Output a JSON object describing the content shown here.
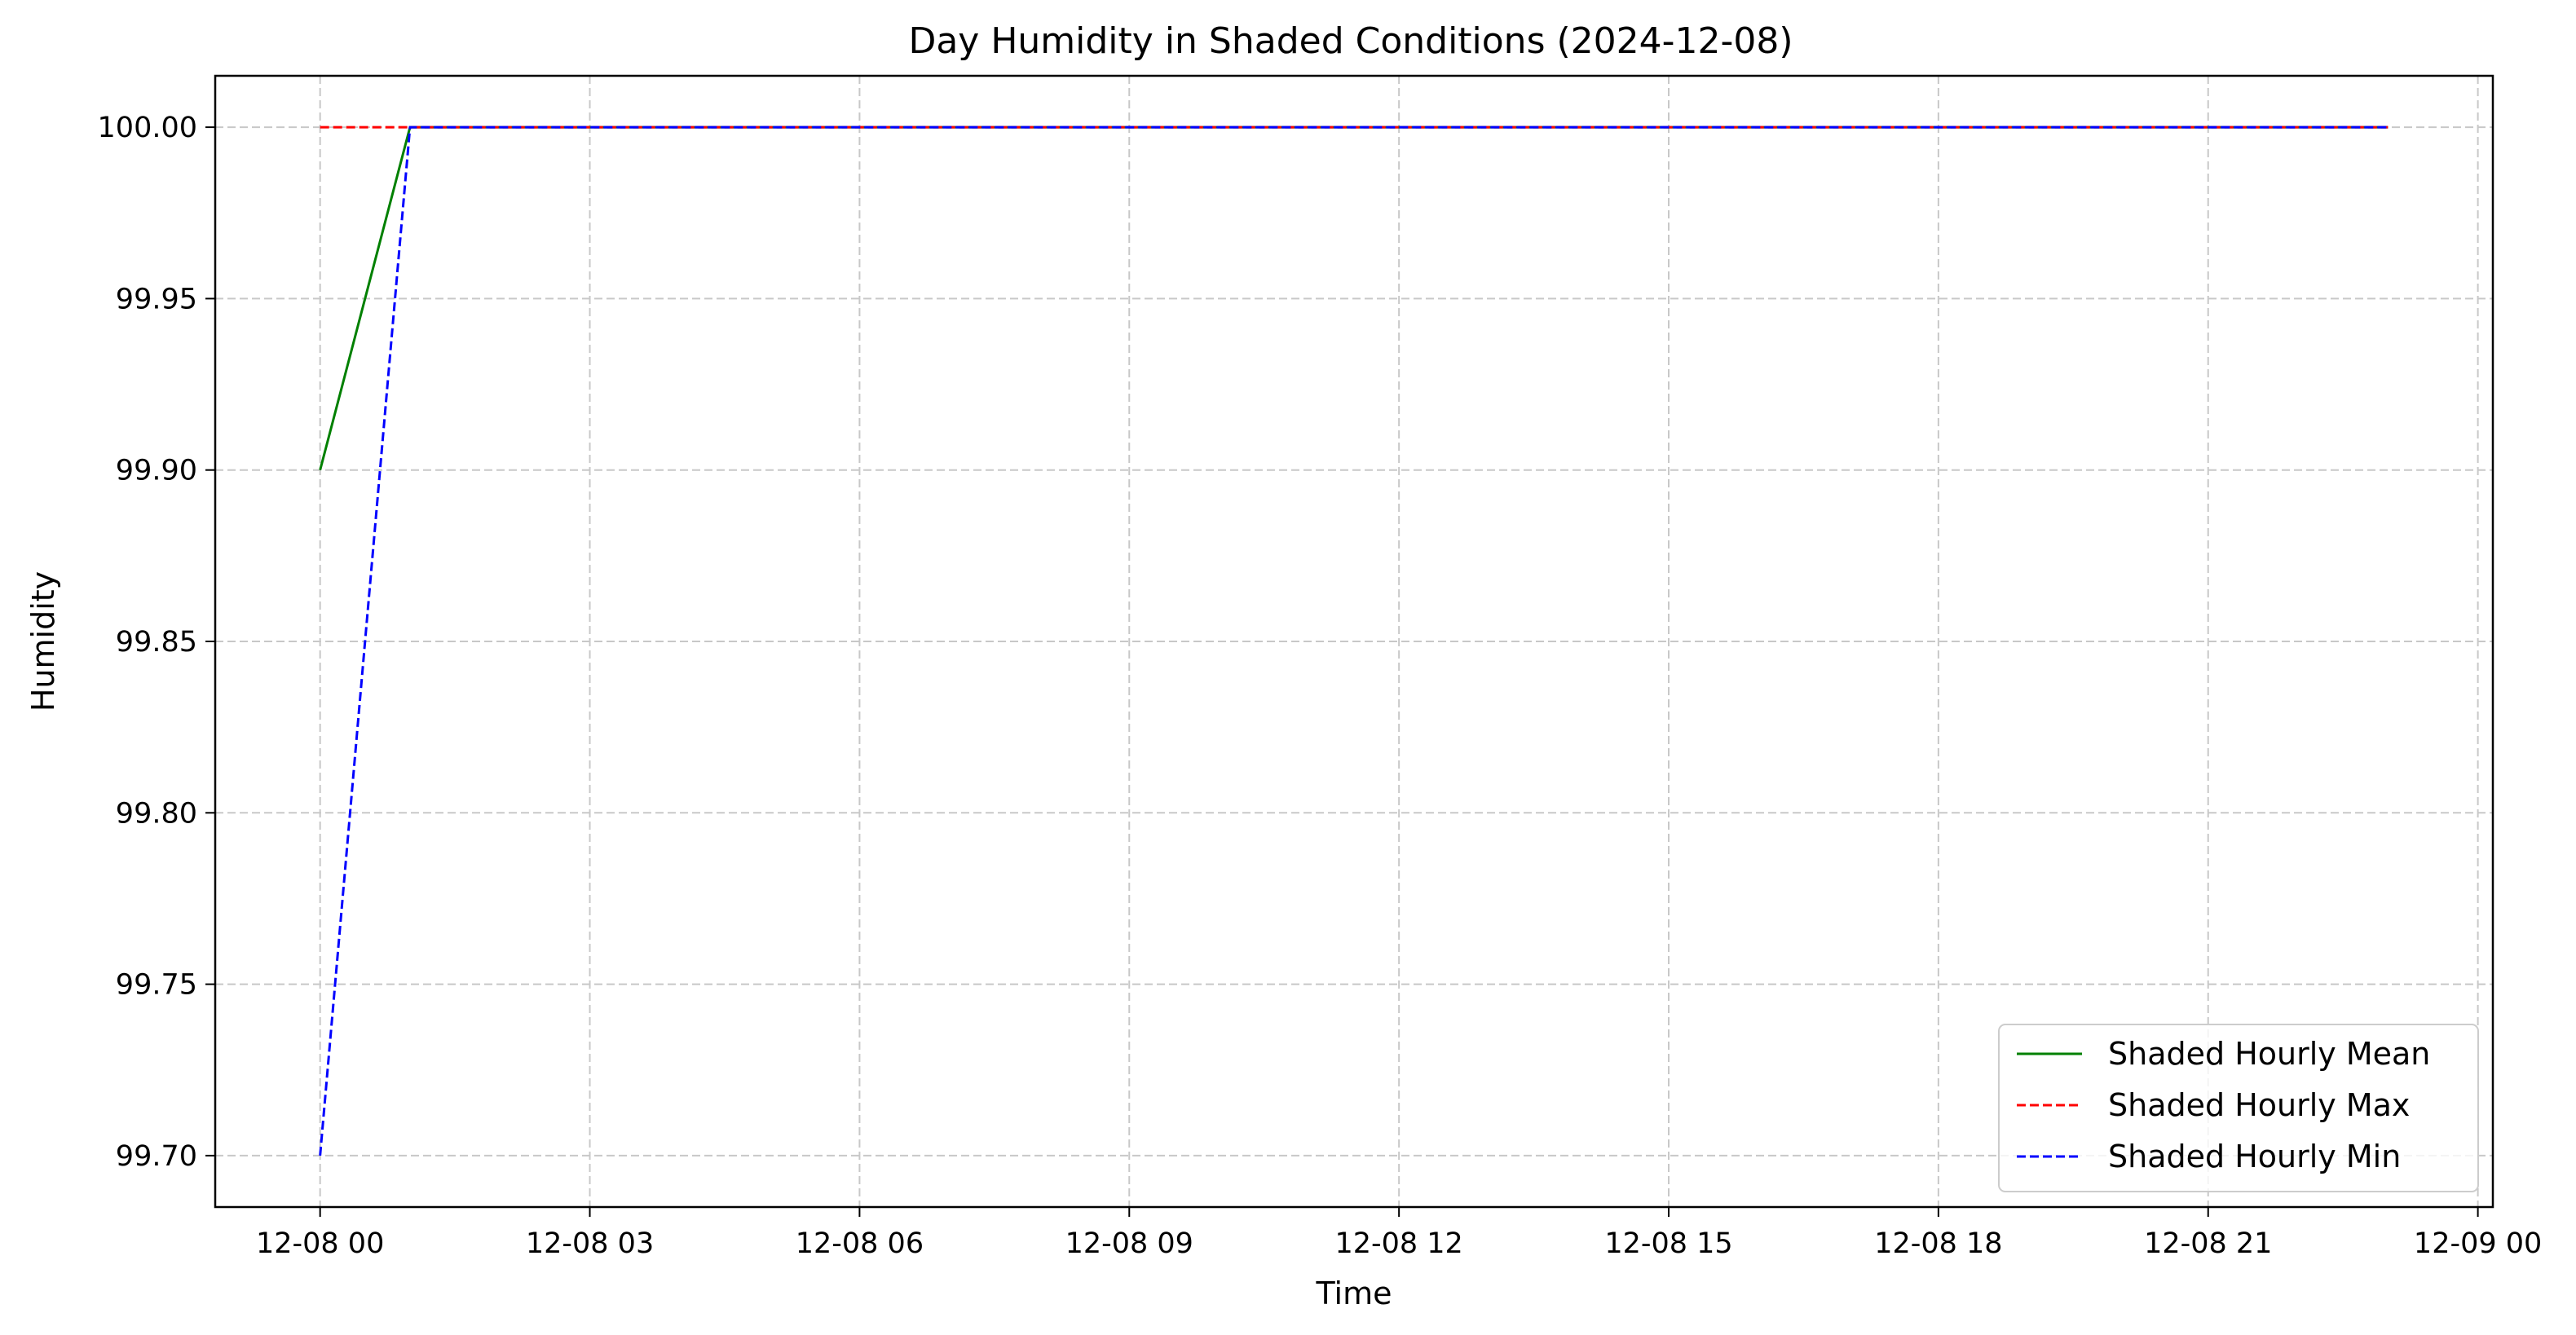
{
  "chart_data": {
    "type": "line",
    "title": "Day Humidity in Shaded Conditions (2024-12-08)",
    "xlabel": "Time",
    "ylabel": "Humidity",
    "ylim": [
      99.685,
      100.015
    ],
    "xlim": [
      "2024-12-07 22:50",
      "2024-12-09 00:10"
    ],
    "x_ticks": [
      "2024-12-08 00:00",
      "2024-12-08 03:00",
      "2024-12-08 06:00",
      "2024-12-08 09:00",
      "2024-12-08 12:00",
      "2024-12-08 15:00",
      "2024-12-08 18:00",
      "2024-12-08 21:00",
      "2024-12-09 00:00"
    ],
    "x_tick_labels": [
      "12-08 00",
      "12-08 03",
      "12-08 06",
      "12-08 09",
      "12-08 12",
      "12-08 15",
      "12-08 18",
      "12-08 21",
      "12-09 00"
    ],
    "y_ticks": [
      99.7,
      99.75,
      99.8,
      99.85,
      99.9,
      99.95,
      100.0
    ],
    "y_tick_labels": [
      "99.70",
      "99.75",
      "99.80",
      "99.85",
      "99.90",
      "99.95",
      "100.00"
    ],
    "grid": true,
    "legend_position": "lower-right",
    "x": [
      "2024-12-08 00:00",
      "2024-12-08 01:00",
      "2024-12-08 02:00",
      "2024-12-08 03:00",
      "2024-12-08 04:00",
      "2024-12-08 05:00",
      "2024-12-08 06:00",
      "2024-12-08 07:00",
      "2024-12-08 08:00",
      "2024-12-08 09:00",
      "2024-12-08 10:00",
      "2024-12-08 11:00",
      "2024-12-08 12:00",
      "2024-12-08 13:00",
      "2024-12-08 14:00",
      "2024-12-08 15:00",
      "2024-12-08 16:00",
      "2024-12-08 17:00",
      "2024-12-08 18:00",
      "2024-12-08 19:00",
      "2024-12-08 20:00",
      "2024-12-08 21:00",
      "2024-12-08 22:00",
      "2024-12-08 23:00"
    ],
    "series": [
      {
        "name": "Shaded Hourly Mean",
        "color": "#008000",
        "dash": "solid",
        "values": [
          99.9,
          100,
          100,
          100,
          100,
          100,
          100,
          100,
          100,
          100,
          100,
          100,
          100,
          100,
          100,
          100,
          100,
          100,
          100,
          100,
          100,
          100,
          100,
          100
        ]
      },
      {
        "name": "Shaded Hourly Max",
        "color": "#ff0000",
        "dash": "dashed",
        "values": [
          100,
          100,
          100,
          100,
          100,
          100,
          100,
          100,
          100,
          100,
          100,
          100,
          100,
          100,
          100,
          100,
          100,
          100,
          100,
          100,
          100,
          100,
          100,
          100
        ]
      },
      {
        "name": "Shaded Hourly Min",
        "color": "#0000ff",
        "dash": "dashed",
        "values": [
          99.7,
          100,
          100,
          100,
          100,
          100,
          100,
          100,
          100,
          100,
          100,
          100,
          100,
          100,
          100,
          100,
          100,
          100,
          100,
          100,
          100,
          100,
          100,
          100
        ]
      }
    ]
  }
}
